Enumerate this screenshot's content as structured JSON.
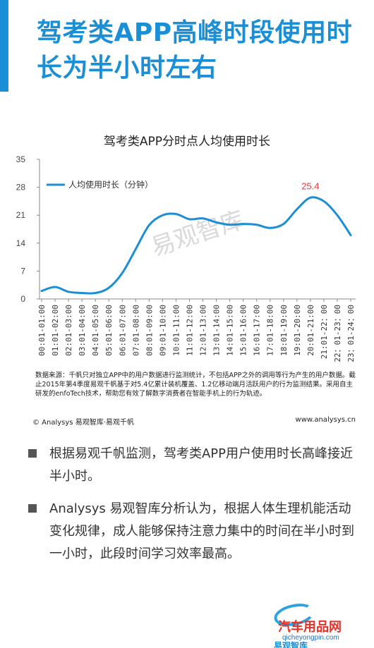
{
  "header": {
    "title": "驾考类APP高峰时段使用时长为半小时左右"
  },
  "chart_data": {
    "type": "line",
    "title": "驾考类APP分时点人均使用时长",
    "ylim": [
      0,
      35
    ],
    "yticks": [
      0,
      7,
      14,
      21,
      28,
      35
    ],
    "categories": [
      "00:01-01:00",
      "01:01-02:00",
      "02:01-03:00",
      "03:01-04:00",
      "04:01-05:00",
      "05:01-06:00",
      "06:01-07:00",
      "07:01-08:00",
      "08:01-09:00",
      "09:01-10:00",
      "10:01-11:00",
      "11:01-12:00",
      "12:01-13:00",
      "13:01-14:00",
      "14:01-15:00",
      "15:01-16:00",
      "16:01-17:00",
      "17:01-18:00",
      "18:01-19:00",
      "19:01-20:00",
      "20:01-21:00",
      "21:01-22：00",
      "22：01-23：00",
      "23：01-24：00"
    ],
    "series": [
      {
        "name": "人均使用时长（分钟）",
        "color": "#1a8fd6",
        "values": [
          2.0,
          3.0,
          1.8,
          1.5,
          1.5,
          2.8,
          6.5,
          12.5,
          18.5,
          21.0,
          21.3,
          20.0,
          20.2,
          19.2,
          18.6,
          18.8,
          18.6,
          17.8,
          18.8,
          22.5,
          25.4,
          24.5,
          21.0,
          16.0
        ]
      }
    ],
    "annotation": {
      "index": 20,
      "text": "25.4",
      "color": "#e03a3a"
    },
    "grid": false,
    "legend": "top-left",
    "watermark": "易观智库"
  },
  "source_note": "数据来源：千帆只对独立APP中的用户数据进行监测统计，不包括APP之外的调用等行为产生的用户数据。截止2015年第4季度易观千帆基于对5.4亿累计装机覆盖、1.2亿移动端月活跃用户的行为监测结果。采用自主研发的enfoTech技术，帮助您有效了解数字消费者在智能手机上的行为轨迹。",
  "footer": {
    "left": "© Analysys 易观智库·易观千帆",
    "right": "www.analysys.cn"
  },
  "bullets": [
    "根据易观千帆监测，驾考类APP用户使用时长高峰接近半小时。",
    "Analysys 易观智库分析认为，根据人体生理机能活动变化规律，成人能够保持注意力集中的时间在半小时到一小时，此段时间学习效率最高。"
  ],
  "logo": {
    "text": "汽车用品网",
    "url": "qicheyongpin.com",
    "sub": "易观智库"
  }
}
